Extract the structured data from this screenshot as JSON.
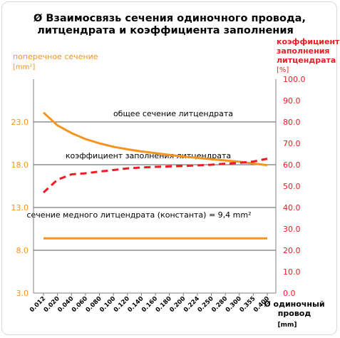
{
  "chart_data": {
    "type": "line",
    "title_line1": "Ø Взаимосвязь сечения одиночного провода,",
    "title_line2": "литцендрата и коэффициента заполнения",
    "y_left_label": "поперечное сечение",
    "y_left_unit": "[mm²]",
    "y_right_label_line1": "коэффициент",
    "y_right_label_line2": "заполнения",
    "y_right_label_line3": "литцендрата",
    "y_right_unit": "[%]",
    "x_label_line1": "Ø одиночный",
    "x_label_line2": "провод",
    "x_unit": "[mm]",
    "categories": [
      "0.012",
      "0.020",
      "0.040",
      "0.060",
      "0.080",
      "0.100",
      "0.120",
      "0.140",
      "0.160",
      "0.180",
      "0.200",
      "0.224",
      "0.250",
      "0.280",
      "0.300",
      "0.355",
      "0.400"
    ],
    "y_left_ticks": [
      "3.0",
      "8.0",
      "13.0",
      "18.0",
      "23.0"
    ],
    "y_left_range": [
      3,
      28
    ],
    "y_right_ticks": [
      "0.0",
      "10.0",
      "20.0",
      "30.0",
      "40.0",
      "50.0",
      "60.0",
      "70.0",
      "80.0",
      "90.0",
      "100.0"
    ],
    "y_right_range": [
      0,
      100
    ],
    "series": [
      {
        "name": "общее сечение литцендрата",
        "axis": "left",
        "color": "#f7941d",
        "style": "solid",
        "values": [
          24.1,
          22.6,
          21.7,
          21.0,
          20.5,
          20.1,
          19.8,
          19.55,
          19.35,
          19.15,
          18.95,
          18.8,
          18.65,
          18.5,
          18.35,
          18.15,
          17.95
        ]
      },
      {
        "name": "коэффициент заполнения литцендрата",
        "axis": "right",
        "color": "#ee1c25",
        "style": "dashed",
        "values": [
          47.0,
          53.0,
          55.5,
          56.0,
          56.8,
          57.5,
          58.3,
          58.7,
          59.0,
          59.2,
          59.4,
          59.7,
          60.0,
          60.5,
          60.9,
          61.5,
          62.8
        ]
      },
      {
        "name": "сечение медного литцендрата (константа) = 9,4 mm²",
        "axis": "left",
        "color": "#f7941d",
        "style": "solid",
        "values": [
          9.4,
          9.4,
          9.4,
          9.4,
          9.4,
          9.4,
          9.4,
          9.4,
          9.4,
          9.4,
          9.4,
          9.4,
          9.4,
          9.4,
          9.4,
          9.4,
          9.4
        ]
      }
    ],
    "grid": "horizontal",
    "colors": {
      "left_axis": "#f7941d",
      "right_axis": "#ee1c25",
      "text": "#000000",
      "grid": "#595959"
    }
  }
}
